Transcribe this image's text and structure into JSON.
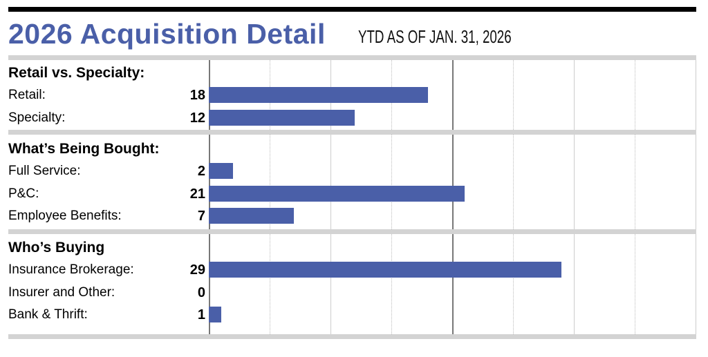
{
  "chart_data": {
    "type": "bar",
    "orientation": "horizontal",
    "title": "2026 Acquisition Detail",
    "subtitle": "YTD AS OF JAN. 31, 2026",
    "xlim": [
      0,
      40
    ],
    "grid": true,
    "bar_color": "#4a5fa8",
    "title_color": "#4a5fa8",
    "groups": [
      {
        "heading": "Retail vs. Specialty:",
        "categories": [
          "Retail:",
          "Specialty:"
        ],
        "values": [
          18,
          12
        ]
      },
      {
        "heading": "What’s Being Bought:",
        "categories": [
          "Full Service:",
          "P&C:",
          "Employee Benefits:"
        ],
        "values": [
          2,
          21,
          7
        ]
      },
      {
        "heading": "Who’s Buying",
        "categories": [
          "Insurance Brokerage:",
          "Insurer and Other:",
          "Bank & Thrift:"
        ],
        "values": [
          29,
          0,
          1
        ]
      }
    ]
  }
}
